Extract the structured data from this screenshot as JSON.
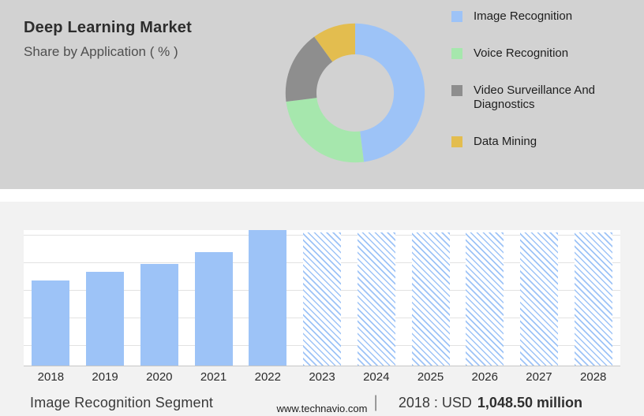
{
  "header": {
    "title": "Deep Learning Market",
    "subtitle": "Share by Application ( % )"
  },
  "colors": {
    "top_bg": "#D2D2D2",
    "bottom_bg": "#F2F2F2",
    "plot_bg": "#FFFFFF",
    "bar_blue": "#9DC3F7",
    "green": "#A6E7AD",
    "gray": "#8E8E8E",
    "gold": "#E3BD4F"
  },
  "chart_data": [
    {
      "type": "pie",
      "donut": true,
      "title": "Deep Learning Market — Share by Application ( % )",
      "legend_position": "right",
      "segments": [
        {
          "label": "Image Recognition",
          "value": 48,
          "color": "#9DC3F7"
        },
        {
          "label": "Voice Recognition",
          "value": 25,
          "color": "#A6E7AD"
        },
        {
          "label": "Video Surveillance And Diagnostics",
          "value": 17,
          "color": "#8E8E8E"
        },
        {
          "label": "Data Mining",
          "value": 10,
          "color": "#E3BD4F"
        }
      ]
    },
    {
      "type": "bar",
      "categories": [
        "2018",
        "2019",
        "2020",
        "2021",
        "2022",
        "2023",
        "2024",
        "2025",
        "2026",
        "2027",
        "2028"
      ],
      "values_relative": [
        63,
        69,
        75,
        84,
        100,
        98,
        98,
        98,
        98,
        98,
        98
      ],
      "solid_through": "2022",
      "hatched_from": "2023",
      "bar_color": "#9DC3F7",
      "grid": true,
      "xlabel": "",
      "ylabel": "",
      "known_value": {
        "year": "2018",
        "value": "1,048.50",
        "unit": "USD million"
      }
    }
  ],
  "footer": {
    "segment_label": "Image Recognition Segment",
    "divider": "|",
    "value_prefix": "2018 : USD",
    "value_bold": "1,048.50 million",
    "website": "www.technavio.com"
  }
}
